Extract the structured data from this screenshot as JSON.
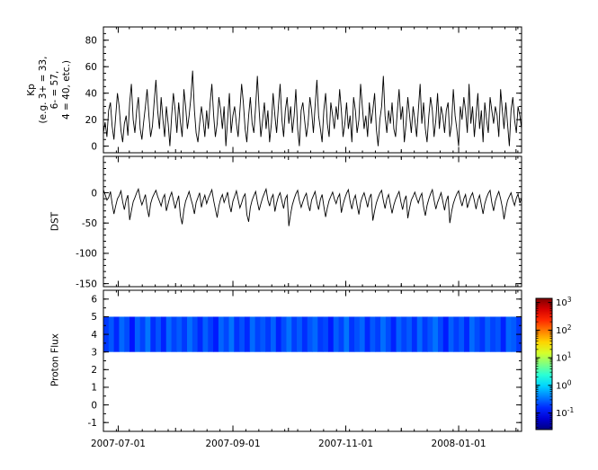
{
  "figure": {
    "background": "#ffffff",
    "axis_color": "#000000"
  },
  "chart_data": {
    "type": "multi-panel",
    "x_axis": {
      "start_day": 0,
      "end_day": 226,
      "major_ticks": [
        {
          "day": 8,
          "label": "2007-07-01"
        },
        {
          "day": 70,
          "label": "2007-09-01"
        },
        {
          "day": 131,
          "label": "2007-11-01"
        },
        {
          "day": 192,
          "label": "2008-01-01"
        }
      ],
      "month_ticks": [
        39,
        100,
        161,
        223
      ],
      "minor_tick_step_days": 7
    },
    "panels": [
      {
        "id": "kp",
        "type": "line",
        "ylabel_lines": [
          "Kp",
          "(e.g. 3+ = 33,",
          "6- = 57,",
          "4 = 40, etc.)"
        ],
        "ylim": [
          -5,
          90
        ],
        "yticks": [
          0,
          20,
          40,
          60,
          80
        ],
        "yminor_step": 5,
        "line_color": "#000000",
        "values": [
          10,
          18,
          7,
          27,
          33,
          15,
          5,
          22,
          40,
          30,
          12,
          3,
          17,
          23,
          8,
          33,
          47,
          20,
          10,
          27,
          37,
          13,
          5,
          18,
          30,
          43,
          23,
          7,
          15,
          33,
          50,
          27,
          13,
          37,
          20,
          7,
          30,
          17,
          0,
          23,
          40,
          27,
          10,
          33,
          18,
          7,
          43,
          30,
          13,
          23,
          37,
          57,
          27,
          10,
          3,
          17,
          30,
          20,
          7,
          27,
          13,
          33,
          47,
          23,
          7,
          17,
          37,
          27,
          13,
          30,
          0,
          20,
          40,
          10,
          23,
          30,
          17,
          7,
          27,
          47,
          33,
          13,
          3,
          23,
          37,
          17,
          10,
          30,
          53,
          27,
          7,
          20,
          33,
          13,
          27,
          3,
          17,
          40,
          23,
          10,
          30,
          47,
          20,
          7,
          27,
          37,
          17,
          30,
          10,
          23,
          43,
          13,
          0,
          27,
          33,
          20,
          7,
          17,
          37,
          27,
          10,
          30,
          50,
          23,
          13,
          3,
          27,
          40,
          17,
          7,
          33,
          23,
          13,
          30,
          20,
          43,
          27,
          7,
          17,
          33,
          13,
          23,
          3,
          37,
          27,
          10,
          20,
          47,
          30,
          13,
          23,
          7,
          33,
          17,
          27,
          40,
          13,
          0,
          20,
          30,
          53,
          23,
          10,
          27,
          17,
          33,
          13,
          7,
          27,
          43,
          20,
          30,
          3,
          17,
          37,
          23,
          10,
          30,
          20,
          7,
          27,
          47,
          17,
          33,
          13,
          3,
          23,
          37,
          27,
          7,
          20,
          40,
          13,
          30,
          23,
          10,
          27,
          33,
          7,
          17,
          43,
          23,
          13,
          0,
          30,
          20,
          37,
          27,
          10,
          47,
          17,
          30,
          7,
          23,
          40,
          13,
          27,
          3,
          33,
          20,
          10,
          37,
          27,
          17,
          30,
          23,
          7,
          43,
          27,
          13,
          33,
          17,
          0,
          27,
          37,
          20,
          10,
          30,
          23,
          13
        ]
      },
      {
        "id": "dst",
        "type": "line",
        "ylabel_lines": [
          "DST"
        ],
        "ylim": [
          -155,
          60
        ],
        "yticks": [
          0,
          -50,
          -100,
          -150
        ],
        "yminor_step": 10,
        "line_color": "#000000",
        "values": [
          5,
          -3,
          -12,
          -8,
          2,
          -18,
          -35,
          -22,
          -10,
          -5,
          3,
          -15,
          -28,
          -12,
          -4,
          -45,
          -30,
          -15,
          -8,
          0,
          6,
          -10,
          -20,
          -12,
          -3,
          -25,
          -40,
          -18,
          -8,
          -2,
          4,
          -6,
          -14,
          -22,
          -9,
          -3,
          -30,
          -18,
          -7,
          1,
          -12,
          -26,
          -15,
          -5,
          -38,
          -52,
          -28,
          -14,
          -6,
          2,
          -10,
          -20,
          -35,
          -16,
          -8,
          0,
          -24,
          -12,
          -4,
          -18,
          -9,
          -2,
          5,
          -13,
          -27,
          -41,
          -22,
          -10,
          -3,
          -16,
          -8,
          1,
          -20,
          -32,
          -14,
          -6,
          3,
          -11,
          -25,
          -17,
          -7,
          -2,
          -36,
          -48,
          -24,
          -12,
          -5,
          2,
          -15,
          -29,
          -18,
          -8,
          -1,
          6,
          -12,
          -22,
          -9,
          -3,
          -31,
          -17,
          -6,
          0,
          -14,
          -26,
          -10,
          -4,
          -55,
          -35,
          -20,
          -10,
          -2,
          4,
          -13,
          -24,
          -15,
          -7,
          -1,
          -19,
          -30,
          -12,
          -5,
          2,
          -16,
          -28,
          -11,
          -3,
          -22,
          -40,
          -25,
          -13,
          -6,
          1,
          -10,
          -18,
          -8,
          -2,
          -33,
          -19,
          -9,
          -1,
          5,
          -14,
          -27,
          -12,
          -4,
          -21,
          -36,
          -16,
          -7,
          0,
          -11,
          -24,
          -9,
          -2,
          -46,
          -30,
          -17,
          -8,
          -1,
          4,
          -13,
          -26,
          -10,
          -3,
          -19,
          -34,
          -20,
          -11,
          -4,
          2,
          -15,
          -28,
          -13,
          -5,
          -42,
          -25,
          -12,
          -6,
          1,
          -9,
          -17,
          -7,
          -1,
          -23,
          -38,
          -21,
          -10,
          -2,
          5,
          -12,
          -27,
          -16,
          -8,
          0,
          -14,
          -29,
          -13,
          -5,
          -50,
          -31,
          -18,
          -9,
          -2,
          3,
          -11,
          -22,
          -10,
          -3,
          -25,
          -15,
          -6,
          0,
          -13,
          -27,
          -12,
          -4,
          -20,
          -35,
          -18,
          -8,
          -1,
          4,
          -16,
          -30,
          -14,
          -5,
          2,
          -10,
          -24,
          -44,
          -26,
          -13,
          -6,
          0,
          -12,
          -21,
          -9,
          -2,
          -17,
          -8
        ]
      },
      {
        "id": "proton-flux",
        "type": "heatmap",
        "ylabel_lines": [
          "Proton Flux"
        ],
        "ylim": [
          -1.5,
          6.5
        ],
        "yticks": [
          6,
          5,
          4,
          3,
          2,
          1,
          0,
          -1
        ],
        "yminor_step": 0.5,
        "band": {
          "ymin": 3,
          "ymax": 5
        },
        "values": [
          0.18,
          0.25,
          0.15,
          0.3,
          0.22,
          0.12,
          0.28,
          0.2,
          0.35,
          0.16,
          0.24,
          0.14,
          0.3,
          0.2,
          0.26,
          0.18,
          0.32,
          0.22,
          0.15,
          0.27,
          0.19,
          0.13,
          0.29,
          0.21,
          0.34,
          0.17,
          0.23,
          0.15,
          0.31,
          0.2,
          0.25,
          0.18,
          0.28,
          0.14,
          0.22,
          0.33,
          0.19,
          0.26,
          0.16,
          0.24,
          0.3,
          0.18,
          0.21,
          0.13,
          0.27,
          0.2,
          0.35,
          0.17,
          0.23,
          0.29,
          0.15,
          0.25,
          0.19,
          0.32,
          0.22,
          0.14,
          0.28,
          0.2,
          0.26,
          0.16,
          0.3,
          0.18,
          0.24,
          0.34,
          0.21,
          0.13,
          0.27,
          0.19,
          0.25,
          0.15,
          0.31,
          0.22,
          0.17,
          0.28,
          0.2,
          0.24,
          0.14,
          0.3,
          0.26,
          0.18
        ]
      }
    ],
    "colorbar": {
      "scale": "log",
      "colormap": "jet",
      "log_min": -1.6,
      "log_max": 3.15,
      "tick_exponents": [
        3,
        2,
        1,
        0,
        -1
      ]
    },
    "xtick_labels": [
      "2007-07-01",
      "2007-09-01",
      "2007-11-01",
      "2008-01-01"
    ]
  }
}
